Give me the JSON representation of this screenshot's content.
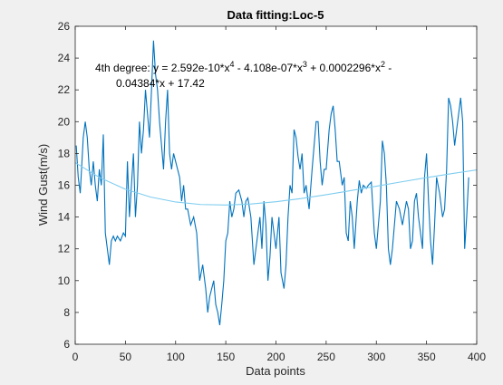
{
  "chart_data": {
    "type": "line",
    "title": "Data fitting:Loc-5",
    "xlabel": "Data points",
    "ylabel": "Wind Gust(m/s)",
    "annotation": [
      [
        "4th degree:  y = 2.592e-10*x",
        "4",
        " - 4.108e-07*x",
        "3",
        " + 0.0002296*x",
        "2",
        " -"
      ],
      [
        "0.04384*x + 17.42"
      ]
    ],
    "xlim": [
      0,
      400
    ],
    "xticks": [
      0,
      50,
      100,
      150,
      200,
      250,
      300,
      350,
      400
    ],
    "ylim": [
      6,
      26
    ],
    "yticks": [
      6,
      8,
      10,
      12,
      14,
      16,
      18,
      20,
      22,
      24,
      26
    ],
    "series": [
      {
        "color": "#0072bd",
        "x": [
          1,
          3,
          5,
          8,
          10,
          12,
          14,
          16,
          18,
          20,
          22,
          24,
          26,
          28,
          30,
          32,
          34,
          36,
          38,
          40,
          42,
          45,
          48,
          50,
          52,
          54,
          56,
          58,
          60,
          62,
          64,
          66,
          68,
          70,
          72,
          74,
          76,
          78,
          80,
          82,
          84,
          86,
          88,
          90,
          92,
          94,
          96,
          98,
          100,
          102,
          104,
          106,
          108,
          110,
          112,
          115,
          118,
          121,
          124,
          127,
          130,
          132,
          134,
          136,
          138,
          140,
          142,
          144,
          146,
          148,
          150,
          152,
          154,
          156,
          158,
          160,
          163,
          166,
          168,
          170,
          172,
          175,
          178,
          180,
          182,
          184,
          186,
          188,
          190,
          192,
          194,
          196,
          198,
          200,
          203,
          205,
          208,
          210,
          212,
          214,
          216,
          218,
          220,
          222,
          224,
          226,
          228,
          230,
          233,
          236,
          238,
          240,
          242,
          244,
          246,
          248,
          250,
          253,
          255,
          257,
          259,
          261,
          263,
          266,
          268,
          270,
          272,
          274,
          276,
          278,
          281,
          283,
          285,
          287,
          290,
          292,
          295,
          298,
          300,
          302,
          304,
          306,
          308,
          310,
          312,
          314,
          316,
          318,
          320,
          323,
          326,
          330,
          332,
          334,
          336,
          338,
          340,
          342,
          344,
          346,
          348,
          350,
          352,
          354,
          356,
          358,
          360,
          363,
          366,
          368,
          370,
          372,
          374,
          376,
          378,
          380,
          382,
          384,
          386,
          388,
          390,
          392
        ],
        "values": [
          18.5,
          16.5,
          15.5,
          19,
          20,
          19,
          17,
          16,
          17.5,
          16,
          15,
          17,
          16,
          19.2,
          13,
          12,
          11,
          12.5,
          12.8,
          12.5,
          12.8,
          12.5,
          13,
          12.8,
          17.5,
          14,
          16,
          18,
          14,
          16,
          20,
          18,
          19.5,
          22,
          20.5,
          19,
          22,
          25.1,
          23,
          22,
          20,
          18.5,
          17,
          20,
          22,
          18,
          17,
          18,
          17.5,
          17,
          16.5,
          15,
          16,
          14.5,
          14.5,
          13.5,
          14,
          13,
          10,
          11,
          9.5,
          8,
          9,
          9.5,
          10,
          8.5,
          8,
          7.2,
          8.5,
          10,
          12.5,
          13,
          15,
          14,
          14.5,
          15.5,
          15.7,
          15,
          14,
          15,
          15.2,
          14,
          11,
          12,
          13,
          14,
          12,
          15,
          13.5,
          10,
          11.5,
          14,
          13,
          12,
          14,
          10.5,
          9.5,
          11,
          14,
          16,
          15.5,
          19.5,
          19,
          17.8,
          17,
          18,
          15.5,
          16,
          14.5,
          17,
          18.5,
          20,
          20,
          17.5,
          16,
          17,
          17,
          19.5,
          20.5,
          21,
          19.5,
          17.5,
          17.5,
          16,
          16.5,
          13,
          12.5,
          15,
          14,
          12,
          15,
          16.3,
          15.5,
          16,
          15.8,
          16,
          16.2,
          13,
          12,
          13.5,
          15,
          18.8,
          18,
          16,
          12,
          11,
          12,
          13.5,
          15,
          14.5,
          13.5,
          15,
          14.5,
          12,
          12.5,
          15,
          15.5,
          14,
          13,
          12,
          16.5,
          18,
          15,
          12.5,
          11,
          13.5,
          16.5,
          15.5,
          14,
          14.5,
          17,
          21.5,
          21,
          20,
          18.5,
          19.5,
          20.5,
          21.5,
          20,
          12,
          14,
          16.5
        ]
      },
      {
        "color": "#7fcdef",
        "x": [
          0,
          25,
          50,
          75,
          100,
          125,
          150,
          175,
          200,
          225,
          250,
          275,
          300,
          325,
          350,
          375,
          400
        ],
        "values": [
          17.42,
          16.461,
          15.752,
          15.258,
          14.947,
          14.789,
          14.755,
          14.821,
          14.964,
          15.165,
          15.404,
          15.667,
          15.94,
          16.213,
          16.479,
          16.73,
          16.964
        ]
      }
    ]
  }
}
